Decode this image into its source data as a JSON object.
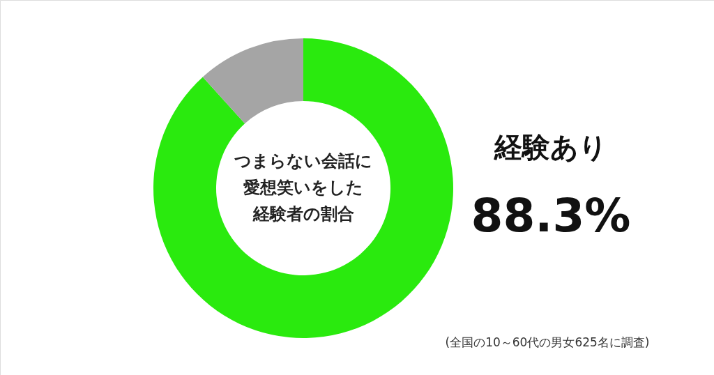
{
  "chart_data": {
    "type": "donut",
    "title": "つまらない会話に愛想笑いをした経験者の割合",
    "categories": [
      "経験あり",
      null
    ],
    "values": [
      88.3,
      11.7
    ],
    "colors": [
      "#2aea0e",
      "#a5a5a5"
    ],
    "value_labels": [
      "88.3%",
      null
    ],
    "annotations": [
      "(全国の10～60代の男女625名に調査)"
    ]
  }
}
